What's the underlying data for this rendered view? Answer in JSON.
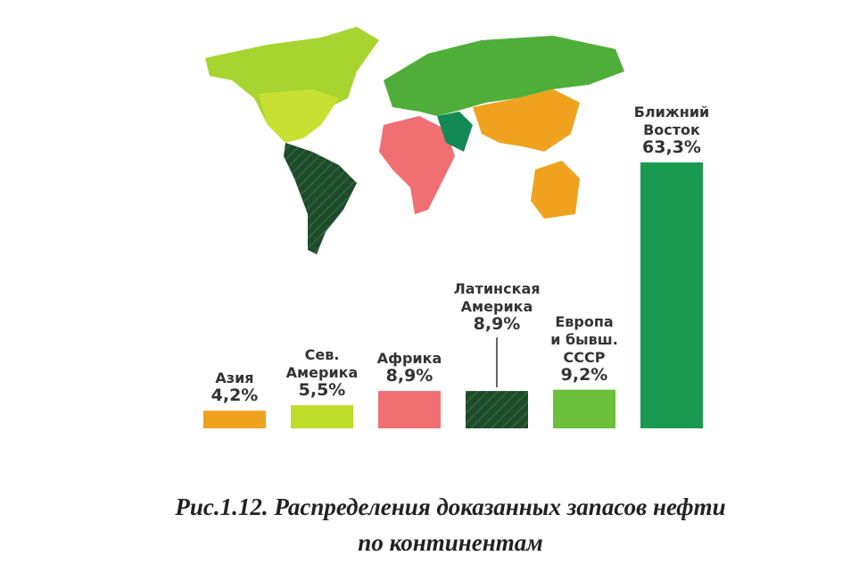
{
  "chart_data": {
    "type": "bar",
    "categories": [
      "Азия",
      "Сев.\nАмерика",
      "Африка",
      "Латинская\nАмерика",
      "Европа\nи бывш.\nСССР",
      "Ближний\nВосток"
    ],
    "values": [
      4.2,
      5.5,
      8.9,
      8.9,
      9.2,
      63.3
    ],
    "value_labels": [
      "4,2%",
      "5,5%",
      "8,9%",
      "8,9%",
      "9,2%",
      "63,3%"
    ],
    "colors": [
      "#f0a21e",
      "#bedc2a",
      "#ef6f72",
      "#1f4a2c",
      "#6cbf3a",
      "#1a9a50"
    ],
    "ylim": [
      0,
      63.3
    ],
    "caption": "Рис.1.12. Распределения доказанных запасов нефти\nпо континентам"
  }
}
